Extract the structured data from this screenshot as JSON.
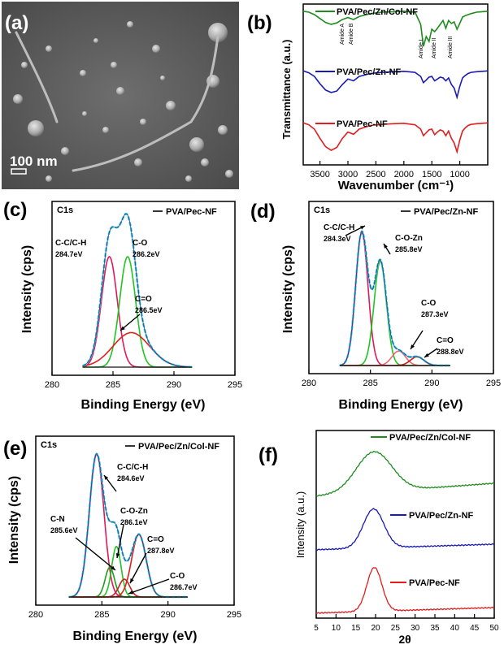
{
  "panel_a": {
    "label": "(a)",
    "scale_text": "100 nm"
  },
  "chart_data": [
    {
      "id": "b",
      "type": "line",
      "panel_label": "(b)",
      "xlabel": "Wavenumber (cm⁻¹)",
      "ylabel": "Transmittance (a.u.)",
      "xlim": [
        3800,
        500
      ],
      "xticks": [
        3500,
        3000,
        2500,
        2000,
        1500,
        1000
      ],
      "annotations": [
        "Amide A",
        "Amide B",
        "Amide I",
        "Amide II",
        "Amide III"
      ],
      "series": [
        {
          "name": "PVA/Pec/Zn/Col-NF",
          "color": "#1e8c1e",
          "x": [
            3800,
            3700,
            3600,
            3500,
            3400,
            3300,
            3200,
            3100,
            3000,
            2900,
            2800,
            2600,
            2400,
            2200,
            2000,
            1800,
            1700,
            1650,
            1600,
            1550,
            1500,
            1450,
            1400,
            1350,
            1300,
            1250,
            1200,
            1150,
            1100,
            1050,
            1000,
            950,
            900,
            850,
            800,
            700,
            600,
            500
          ],
          "y": [
            0.97,
            0.95,
            0.9,
            0.82,
            0.74,
            0.7,
            0.73,
            0.8,
            0.84,
            0.8,
            0.86,
            0.92,
            0.95,
            0.96,
            0.97,
            0.95,
            0.7,
            0.25,
            0.45,
            0.35,
            0.6,
            0.55,
            0.62,
            0.7,
            0.78,
            0.62,
            0.78,
            0.72,
            0.75,
            0.6,
            0.72,
            0.85,
            0.88,
            0.9,
            0.92,
            0.95,
            0.96,
            0.97
          ]
        },
        {
          "name": "PVA/Pec/Zn-NF",
          "color": "#1a1ab4",
          "x": [
            3800,
            3700,
            3600,
            3500,
            3400,
            3300,
            3200,
            3100,
            3000,
            2900,
            2800,
            2600,
            2400,
            2200,
            2000,
            1800,
            1700,
            1650,
            1600,
            1550,
            1500,
            1450,
            1400,
            1350,
            1300,
            1250,
            1200,
            1150,
            1100,
            1050,
            1000,
            950,
            900,
            850,
            800,
            700,
            600,
            500
          ],
          "y": [
            0.97,
            0.92,
            0.82,
            0.62,
            0.45,
            0.38,
            0.42,
            0.6,
            0.75,
            0.7,
            0.82,
            0.9,
            0.93,
            0.95,
            0.96,
            0.93,
            0.82,
            0.65,
            0.72,
            0.8,
            0.82,
            0.7,
            0.75,
            0.8,
            0.78,
            0.7,
            0.78,
            0.6,
            0.5,
            0.25,
            0.55,
            0.78,
            0.85,
            0.9,
            0.93,
            0.95,
            0.96,
            0.97
          ]
        },
        {
          "name": "PVA/Pec-NF",
          "color": "#e01e1e",
          "x": [
            3800,
            3700,
            3600,
            3500,
            3400,
            3300,
            3200,
            3100,
            3000,
            2900,
            2800,
            2600,
            2400,
            2200,
            2000,
            1800,
            1700,
            1650,
            1600,
            1550,
            1500,
            1450,
            1400,
            1350,
            1300,
            1250,
            1200,
            1150,
            1100,
            1050,
            1000,
            950,
            900,
            850,
            800,
            700,
            600,
            500
          ],
          "y": [
            0.97,
            0.92,
            0.8,
            0.55,
            0.32,
            0.22,
            0.3,
            0.55,
            0.72,
            0.66,
            0.8,
            0.9,
            0.93,
            0.95,
            0.96,
            0.92,
            0.8,
            0.62,
            0.7,
            0.78,
            0.8,
            0.65,
            0.72,
            0.78,
            0.75,
            0.62,
            0.75,
            0.55,
            0.42,
            0.18,
            0.5,
            0.75,
            0.84,
            0.9,
            0.93,
            0.95,
            0.96,
            0.97
          ]
        }
      ]
    },
    {
      "id": "c",
      "type": "line",
      "panel_label": "(c)",
      "xlabel": "Binding Energy (eV)",
      "ylabel": "Intensity (cps)",
      "xlim": [
        280,
        295
      ],
      "xticks": [
        280,
        285,
        290,
        295
      ],
      "corner_label": "C1s",
      "legend": "PVA/Pec-NF",
      "envelope_color": "#29c4d6",
      "components": [
        {
          "center": 284.7,
          "height": 0.8,
          "width": 0.65,
          "color": "#e0195a"
        },
        {
          "center": 286.2,
          "height": 0.8,
          "width": 0.65,
          "color": "#22c422"
        },
        {
          "center": 286.5,
          "height": 0.25,
          "width": 1.5,
          "color": "#e01e1e"
        }
      ],
      "peak_labels": [
        {
          "name": "C-C/C-H",
          "value": "284.7eV"
        },
        {
          "name": "C-O",
          "value": "286.2eV"
        },
        {
          "name": "C=O",
          "value": "286.5eV"
        }
      ]
    },
    {
      "id": "d",
      "type": "line",
      "panel_label": "(d)",
      "xlabel": "Binding Energy (eV)",
      "ylabel": "Intensity (cps)",
      "xlim": [
        280,
        295
      ],
      "xticks": [
        280,
        285,
        290,
        295
      ],
      "corner_label": "C1s",
      "legend": "PVA/Pec/Zn-NF",
      "envelope_color": "#29c4d6",
      "components": [
        {
          "center": 284.3,
          "height": 0.92,
          "width": 0.5,
          "color": "#e0195a"
        },
        {
          "center": 285.8,
          "height": 0.72,
          "width": 0.5,
          "color": "#22c422"
        },
        {
          "center": 287.3,
          "height": 0.1,
          "width": 0.55,
          "color": "#e86a6a"
        },
        {
          "center": 288.8,
          "height": 0.06,
          "width": 0.55,
          "color": "#c42020"
        }
      ],
      "peak_labels": [
        {
          "name": "C-C/C-H",
          "value": "284.3eV"
        },
        {
          "name": "C-O-Zn",
          "value": "285.8eV"
        },
        {
          "name": "C-O",
          "value": "287.3eV"
        },
        {
          "name": "C=O",
          "value": "288.8eV"
        }
      ]
    },
    {
      "id": "e",
      "type": "line",
      "panel_label": "(e)",
      "xlabel": "Binding Energy (eV)",
      "ylabel": "Intensity (cps)",
      "xlim": [
        280,
        295
      ],
      "xticks": [
        280,
        285,
        290,
        295
      ],
      "corner_label": "C1s",
      "legend": "PVA/Pec/Zn/Col-NF",
      "envelope_color": "#29c4d6",
      "components": [
        {
          "center": 284.6,
          "height": 0.96,
          "width": 0.55,
          "color": "#e0195a"
        },
        {
          "center": 285.6,
          "height": 0.2,
          "width": 0.35,
          "color": "#1e9e1e"
        },
        {
          "center": 286.1,
          "height": 0.34,
          "width": 0.35,
          "color": "#22c422"
        },
        {
          "center": 286.7,
          "height": 0.12,
          "width": 0.4,
          "color": "#c42020"
        },
        {
          "center": 287.8,
          "height": 0.42,
          "width": 0.55,
          "color": "#e01e1e"
        }
      ],
      "peak_labels": [
        {
          "name": "C-C/C-H",
          "value": "284.6eV"
        },
        {
          "name": "C-N",
          "value": "285.6eV"
        },
        {
          "name": "C-O-Zn",
          "value": "286.1eV"
        },
        {
          "name": "C=O",
          "value": "287.8eV"
        },
        {
          "name": "C-O",
          "value": "286.7eV"
        }
      ]
    },
    {
      "id": "f",
      "type": "line",
      "panel_label": "(f)",
      "xlabel": "2θ",
      "ylabel": "Intensity (a.u.)",
      "xlim": [
        5,
        50
      ],
      "xticks": [
        5,
        10,
        15,
        20,
        25,
        30,
        35,
        40,
        45,
        50
      ],
      "series": [
        {
          "name": "PVA/Pec/Zn/Col-NF",
          "color": "#1e8c1e",
          "peak": 19.6,
          "height": 0.9,
          "width": 4.5
        },
        {
          "name": "PVA/Pec/Zn-NF",
          "color": "#1a1ab4",
          "peak": 19.5,
          "height": 1.0,
          "width": 2.6
        },
        {
          "name": "PVA/Pec-NF",
          "color": "#e01e1e",
          "peak": 19.7,
          "height": 1.0,
          "width": 1.9
        }
      ]
    }
  ]
}
